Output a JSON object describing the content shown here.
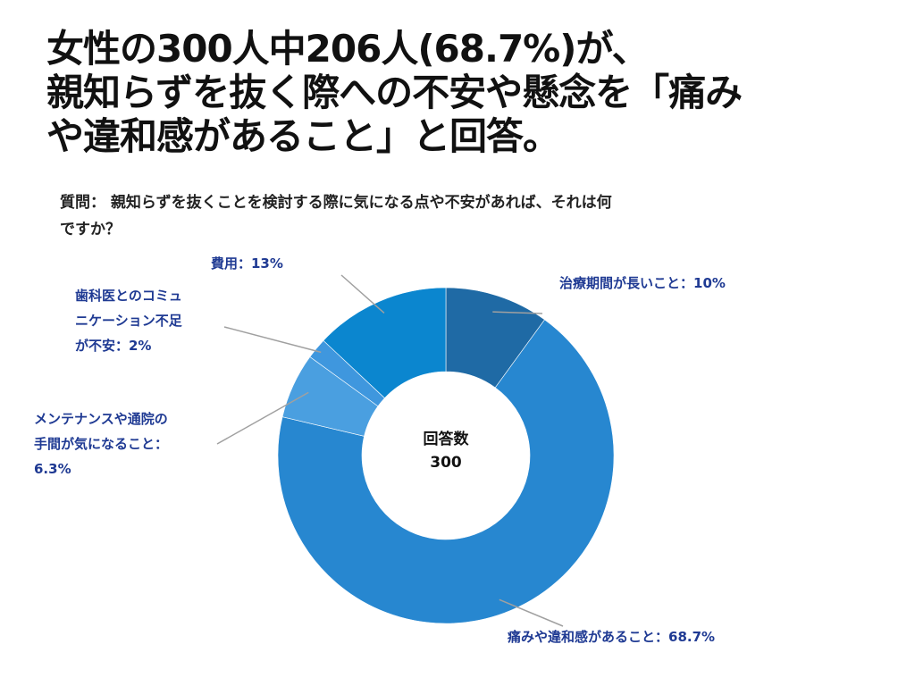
{
  "headline": {
    "line1": "女性の300人中206人(68.7%)が、",
    "line2": "親知らずを抜く際への不安や懸念を「痛み",
    "line3": "や違和感があること」と回答。"
  },
  "question": {
    "line1": "質問： 親知らずを抜くことを検討する際に気になる点や不安があれば、それは何",
    "line2": "ですか？"
  },
  "chart_data": {
    "type": "pie",
    "donut": true,
    "center_label": {
      "line1": "回答数",
      "line2": "300"
    },
    "slices": [
      {
        "value": 10,
        "color": "#1f6aa5",
        "label_lines": [
          "治療期間が長いこと：10%"
        ]
      },
      {
        "value": 68.7,
        "color": "#2787d0",
        "label_lines": [
          "痛みや違和感があること：68.7%"
        ]
      },
      {
        "value": 6.3,
        "color": "#4a9fe0",
        "label_lines": [
          "メンテナンスや通院の",
          "手間が気になること：",
          "6.3%"
        ]
      },
      {
        "value": 2,
        "color": "#3f97de",
        "label_lines": [
          "歯科医とのコミュ",
          "ニケーション不足",
          "が不安：2%"
        ]
      },
      {
        "value": 13,
        "color": "#0b86cf",
        "label_lines": [
          "費用：13%"
        ]
      }
    ],
    "start": "top",
    "direction": "clockwise",
    "legend": "none",
    "label_color": "#1f3a93",
    "leader_line_color": "#a0a0a0"
  }
}
